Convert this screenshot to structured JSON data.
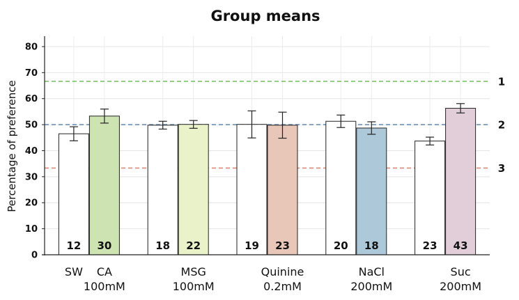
{
  "chart_data": {
    "type": "bar",
    "title": "Group means",
    "ylabel": "Percentage of preference",
    "xlabel": "",
    "ylim": [
      0,
      84
    ],
    "yticks": [
      0,
      10,
      20,
      30,
      40,
      50,
      60,
      70,
      80
    ],
    "grid": true,
    "groups": [
      {
        "name": "",
        "bars": [
          {
            "label": "SW",
            "value": 46.5,
            "error": 2.7,
            "n": "12",
            "color": "#ffffff"
          },
          {
            "label": "CA\n100mM",
            "value": 53.3,
            "error": 2.7,
            "n": "30",
            "color": "#cde3b1"
          }
        ]
      },
      {
        "name": "",
        "bars": [
          {
            "label": "",
            "value": 49.8,
            "error": 1.5,
            "n": "18",
            "color": "#ffffff"
          },
          {
            "label": "MSG\n100mM",
            "value": 50.1,
            "error": 1.5,
            "n": "22",
            "color": "#eaf2ca"
          }
        ]
      },
      {
        "name": "",
        "bars": [
          {
            "label": "",
            "value": 50.1,
            "error": 5.2,
            "n": "19",
            "color": "#ffffff"
          },
          {
            "label": "Quinine\n0.2mM",
            "value": 49.8,
            "error": 5.0,
            "n": "23",
            "color": "#e8c6b8"
          }
        ]
      },
      {
        "name": "",
        "bars": [
          {
            "label": "",
            "value": 51.3,
            "error": 2.4,
            "n": "20",
            "color": "#ffffff"
          },
          {
            "label": "NaCl\n200mM",
            "value": 48.7,
            "error": 2.4,
            "n": "18",
            "color": "#adc8d9"
          }
        ]
      },
      {
        "name": "",
        "bars": [
          {
            "label": "",
            "value": 43.7,
            "error": 1.5,
            "n": "23",
            "color": "#ffffff"
          },
          {
            "label": "Suc\n200mM",
            "value": 56.3,
            "error": 1.8,
            "n": "43",
            "color": "#e1ced9"
          }
        ]
      }
    ],
    "reference_lines": [
      {
        "label": "1",
        "value": 66.67,
        "color": "#7cc06a"
      },
      {
        "label": "2",
        "value": 50.0,
        "color": "#6c8fb5"
      },
      {
        "label": "3",
        "value": 33.33,
        "color": "#d98c73"
      }
    ]
  }
}
